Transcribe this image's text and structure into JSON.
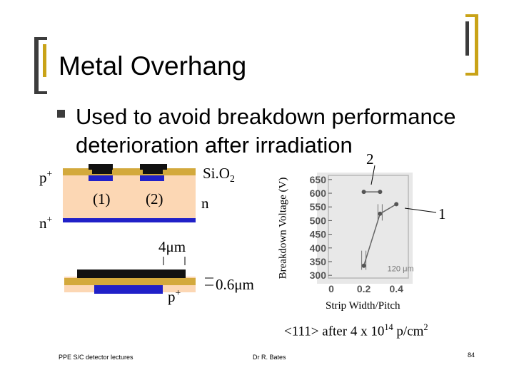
{
  "slide": {
    "title": "Metal Overhang",
    "bullet": "Used to avoid breakdown performance deterioration after irradiation",
    "footer_left": "PPE S/C detector lectures",
    "footer_center": "Dr R. Bates",
    "page_number": "84"
  },
  "diagram": {
    "label_p_plus_top": "p",
    "label_n_plus": "n",
    "label_1": "(1)",
    "label_2": "(2)",
    "label_sio2": "Si.O",
    "label_sio2_sub": "2",
    "label_n": "n",
    "label_4um": "4μm",
    "label_p_plus_bottom": "p",
    "label_06um": "0.6μm",
    "sup_plus": "+"
  },
  "chart_data": {
    "type": "line",
    "ylabel": "Breakdown Voltage (V)",
    "xlabel": "Strip Width/Pitch",
    "caption": "<111> after 4 x 10",
    "caption_exp": "14",
    "caption_unit": " p/cm",
    "caption_unit_exp": "2",
    "inner_annotation": "120 μm",
    "callout_1": "1",
    "callout_2": "2",
    "yticks": [
      "650",
      "600",
      "550",
      "500",
      "450",
      "400",
      "350",
      "300"
    ],
    "xticks": [
      "0",
      "0.2",
      "0.4"
    ],
    "xlim": [
      0,
      0.5
    ],
    "ylim": [
      290,
      660
    ],
    "series": [
      {
        "x": [
          0.2,
          0.3
        ],
        "y": [
          605,
          605
        ]
      },
      {
        "x": [
          0.2,
          0.3,
          0.4
        ],
        "y": [
          335,
          525,
          560
        ]
      }
    ],
    "error_bars": [
      {
        "x": 0.2,
        "low": 320,
        "high": 390
      },
      {
        "x": 0.3,
        "low": 500,
        "high": 560
      }
    ]
  },
  "colors": {
    "sio2": "#d3a93c",
    "substrate": "#fcd7b4",
    "implant": "#2020c8",
    "metal": "#111111",
    "bracket": "#c9a318",
    "bracket_dark": "#3c3c3c"
  }
}
